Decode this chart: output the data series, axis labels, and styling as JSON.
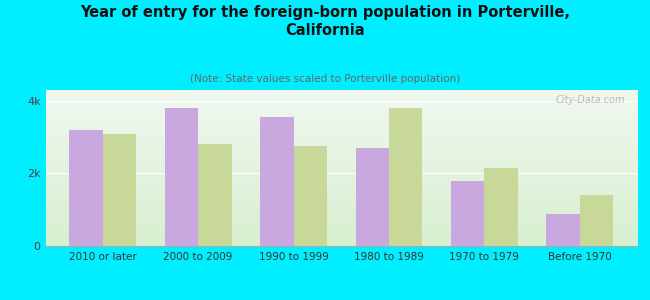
{
  "title": "Year of entry for the foreign-born population in Porterville,\nCalifornia",
  "subtitle": "(Note: State values scaled to Porterville population)",
  "categories": [
    "2010 or later",
    "2000 to 2009",
    "1990 to 1999",
    "1980 to 1989",
    "1970 to 1979",
    "Before 1970"
  ],
  "porterville": [
    3200,
    3800,
    3550,
    2700,
    1800,
    880
  ],
  "california": [
    3100,
    2800,
    2750,
    3800,
    2150,
    1400
  ],
  "porterville_color": "#c9a8e0",
  "california_color": "#c8d898",
  "background_color": "#00eeff",
  "plot_bg_top": "#f0f8f0",
  "plot_bg_bottom": "#d8efd0",
  "title_color": "#111111",
  "subtitle_color": "#666666",
  "ytick_labels": [
    "0",
    "2k",
    "4k"
  ],
  "ytick_values": [
    0,
    2000,
    4000
  ],
  "ylim": [
    0,
    4300
  ],
  "bar_width": 0.35,
  "watermark": "City-Data.com"
}
